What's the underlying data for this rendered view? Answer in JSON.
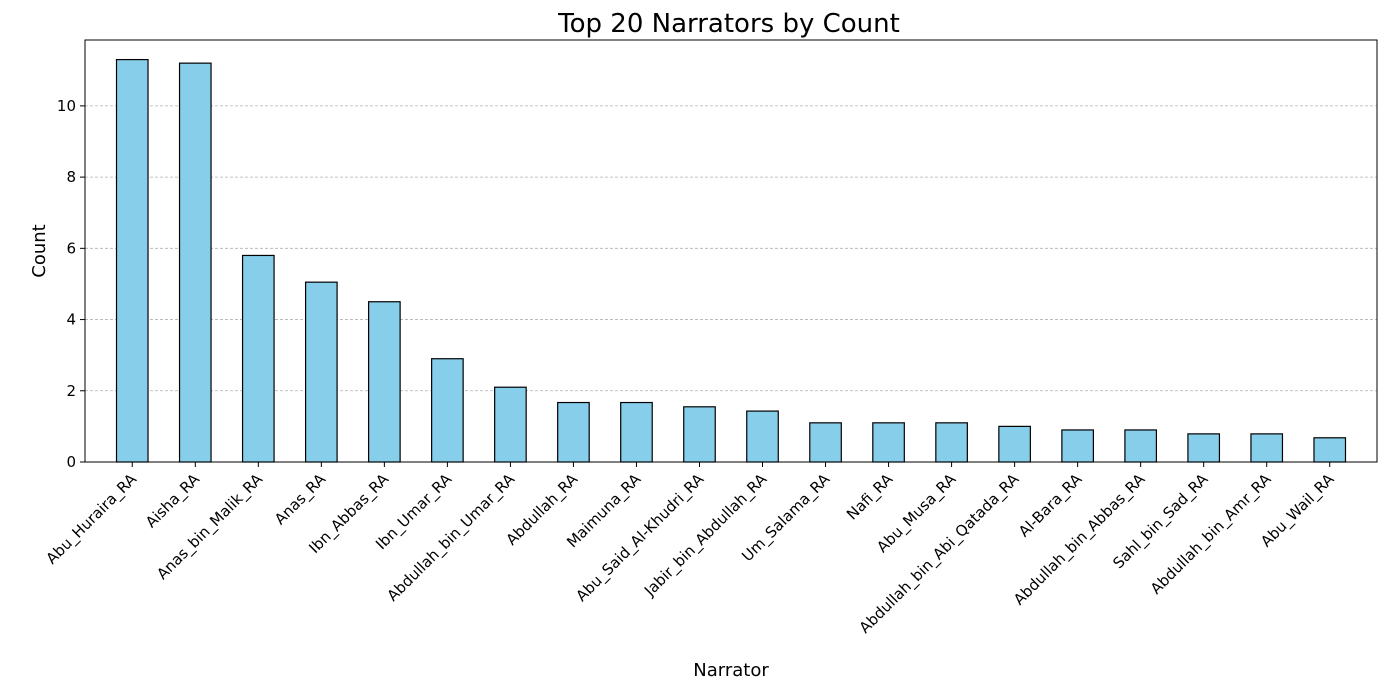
{
  "chart_data": {
    "type": "bar",
    "title": "Top 20 Narrators by Count",
    "xlabel": "Narrator",
    "ylabel": "Count",
    "categories": [
      "Abu_Huraira_RA",
      "Aisha_RA",
      "Anas_bin_Malik_RA",
      "Anas_RA",
      "Ibn_Abbas_RA",
      "Ibn_Umar_RA",
      "Abdullah_bin_Umar_RA",
      "Abdullah_RA",
      "Maimuna_RA",
      "Abu_Said_Al-Khudri_RA",
      "Jabir_bin_Abdullah_RA",
      "Um_Salama_RA",
      "Nafi_RA",
      "Abu_Musa_RA",
      "Abdullah_bin_Abi_Qatada_RA",
      "Al-Bara_RA",
      "Abdullah_bin_Abbas_RA",
      "Sahl_bin_Sad_RA",
      "Abdullah_bin_Amr_RA",
      "Abu_Wail_RA"
    ],
    "values": [
      11.3,
      11.2,
      5.8,
      5.05,
      4.5,
      2.9,
      2.1,
      1.67,
      1.67,
      1.55,
      1.43,
      1.1,
      1.1,
      1.1,
      1.0,
      0.9,
      0.9,
      0.79,
      0.79,
      0.68
    ],
    "ylim": [
      0,
      11.85
    ],
    "yticks": [
      0,
      2,
      4,
      6,
      8,
      10
    ],
    "grid": "y-dashed",
    "colors": {
      "bar_fill": "#87CEEB",
      "bar_edge": "#000000",
      "grid": "#b0b0b0"
    }
  }
}
